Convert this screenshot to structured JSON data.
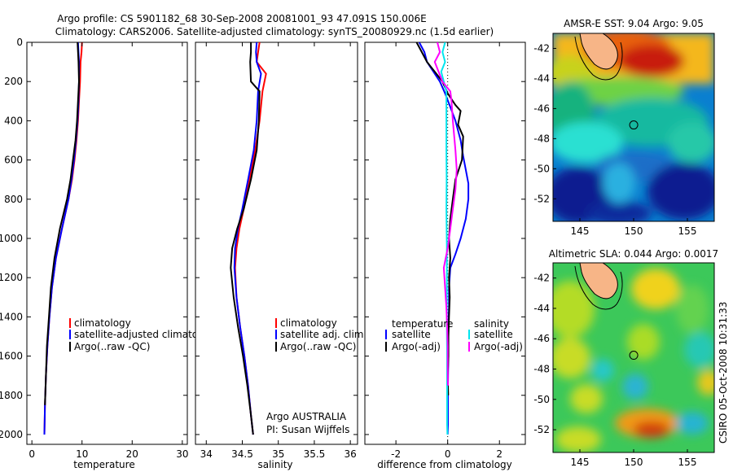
{
  "title_line1": "Argo profile: CS 5901182_68 30-Sep-2008 20081001_93 47.091S 150.006E",
  "title_line2": "Climatology: CARS2006. Satellite-adjusted climatology: synTS_20080929.nc (1.5d earlier)",
  "side_label": "CSIRO 05-Oct-2008 10:31:33",
  "colors": {
    "climatology": "#ff0000",
    "satellite": "#0000ff",
    "argo": "#000000",
    "salinity_satellite": "#00e5ee",
    "salinity_argo": "#ff00ff",
    "land": "#f7b587"
  },
  "chart_data": [
    {
      "type": "line",
      "panel": "temperature",
      "xlabel": "temperature",
      "ylabel": "",
      "xlim": [
        -1,
        31
      ],
      "ylim": [
        0,
        2050
      ],
      "y_inverted": true,
      "xticks": [
        0,
        10,
        20,
        30
      ],
      "yticks": [
        0,
        200,
        400,
        600,
        800,
        1000,
        1200,
        1400,
        1600,
        1800,
        2000
      ],
      "legend": [
        "climatology",
        "satellite-adjusted climatolog",
        "Argo(..raw -QC)"
      ],
      "series": [
        {
          "name": "climatology",
          "color": "climatology",
          "x": [
            10.0,
            9.9,
            9.7,
            9.6,
            9.4,
            9.2,
            8.9,
            8.5,
            8.0,
            7.3,
            6.0,
            4.8,
            4.0,
            3.5,
            3.1,
            2.8,
            2.6,
            2.5
          ],
          "y": [
            0,
            50,
            100,
            200,
            300,
            400,
            500,
            600,
            700,
            800,
            950,
            1100,
            1250,
            1400,
            1550,
            1700,
            1850,
            2000
          ]
        },
        {
          "name": "satellite-adjusted climatology",
          "color": "satellite",
          "x": [
            9.2,
            9.3,
            9.4,
            9.4,
            9.3,
            9.1,
            8.8,
            8.4,
            7.9,
            7.3,
            6.0,
            4.8,
            4.0,
            3.5,
            3.1,
            2.8,
            2.6,
            2.5
          ],
          "y": [
            0,
            50,
            100,
            200,
            300,
            400,
            500,
            600,
            700,
            800,
            950,
            1100,
            1250,
            1400,
            1550,
            1700,
            1850,
            2000
          ]
        },
        {
          "name": "Argo(..raw -QC)",
          "color": "argo",
          "x": [
            9.1,
            9.2,
            9.3,
            9.4,
            9.2,
            9.0,
            8.7,
            8.2,
            7.7,
            7.0,
            5.6,
            4.5,
            3.8,
            3.4,
            3.0,
            2.8,
            2.6
          ],
          "y": [
            0,
            50,
            100,
            200,
            300,
            400,
            500,
            600,
            700,
            800,
            950,
            1100,
            1250,
            1400,
            1550,
            1700,
            1850
          ]
        }
      ]
    },
    {
      "type": "line",
      "panel": "salinity",
      "xlabel": "salinity",
      "xlim": [
        33.85,
        36.1
      ],
      "ylim": [
        0,
        2050
      ],
      "y_inverted": true,
      "xticks": [
        34,
        34.5,
        35,
        35.5,
        36
      ],
      "xtick_labels": [
        "34",
        "34.5",
        "35",
        "35.5",
        "36"
      ],
      "legend": [
        "climatology",
        "satellite adj. clim.",
        "Argo(..raw -QC)"
      ],
      "annotation_line1": "Argo AUSTRALIA",
      "annotation_line2": "PI: Susan Wijffels",
      "series": [
        {
          "name": "climatology",
          "color": "climatology",
          "x": [
            34.74,
            34.72,
            34.7,
            34.83,
            34.78,
            34.74,
            34.68,
            34.6,
            34.52,
            34.46,
            34.42,
            34.4,
            34.42,
            34.47,
            34.53,
            34.58,
            34.62,
            34.65
          ],
          "y": [
            0,
            50,
            100,
            160,
            250,
            400,
            550,
            700,
            850,
            950,
            1050,
            1150,
            1300,
            1450,
            1600,
            1750,
            1900,
            2000
          ]
        },
        {
          "name": "satellite adj. clim.",
          "color": "satellite",
          "x": [
            34.7,
            34.69,
            34.7,
            34.76,
            34.72,
            34.7,
            34.66,
            34.58,
            34.5,
            34.44,
            34.4,
            34.39,
            34.42,
            34.47,
            34.53,
            34.58,
            34.62,
            34.65
          ],
          "y": [
            0,
            50,
            100,
            160,
            250,
            400,
            550,
            700,
            850,
            950,
            1050,
            1150,
            1300,
            1450,
            1600,
            1750,
            1900,
            2000
          ]
        },
        {
          "name": "Argo(..raw -QC)",
          "color": "argo",
          "x": [
            34.62,
            34.62,
            34.61,
            34.62,
            34.74,
            34.73,
            34.7,
            34.62,
            34.52,
            34.43,
            34.36,
            34.34,
            34.38,
            34.44,
            34.51,
            34.57,
            34.62,
            34.65
          ],
          "y": [
            0,
            50,
            100,
            200,
            250,
            400,
            550,
            700,
            850,
            950,
            1050,
            1150,
            1300,
            1450,
            1600,
            1750,
            1900,
            2000
          ]
        }
      ]
    },
    {
      "type": "line",
      "panel": "difference",
      "xlabel": "difference from climatology",
      "xlim": [
        -3.2,
        3.0
      ],
      "ylim": [
        0,
        2050
      ],
      "y_inverted": true,
      "xticks": [
        -2,
        0,
        2
      ],
      "legend_temperature_header": "temperature",
      "legend_salinity_header": "salinity",
      "legend_temperature": [
        "satellite",
        "Argo(-adj)"
      ],
      "legend_salinity": [
        "satellite",
        "Argo(-adj)"
      ],
      "series": [
        {
          "name": "temperature satellite",
          "color": "satellite",
          "x": [
            -1.1,
            -0.9,
            -0.8,
            -0.3,
            -0.1,
            0.1,
            0.3,
            0.5,
            0.6,
            0.7,
            0.8,
            0.8,
            0.7,
            0.5,
            0.3,
            0.1,
            0.05,
            0.05,
            0.03,
            0.02,
            0.02,
            0.01,
            0.01,
            0.01,
            0.0
          ],
          "y": [
            0,
            50,
            100,
            200,
            260,
            330,
            400,
            500,
            580,
            650,
            720,
            800,
            900,
            1000,
            1080,
            1150,
            1250,
            1350,
            1450,
            1550,
            1650,
            1750,
            1850,
            1950,
            2000
          ]
        },
        {
          "name": "temperature Argo(-adj)",
          "color": "argo",
          "x": [
            -1.2,
            -1.0,
            -0.8,
            -0.5,
            -0.2,
            0.0,
            0.3,
            0.5,
            0.4,
            0.6,
            0.55,
            0.3,
            0.2,
            0.1,
            0.05,
            0.1,
            0.05,
            0.08,
            0.05,
            0.03,
            0.03,
            0.0,
            0.02
          ],
          "y": [
            0,
            50,
            100,
            150,
            200,
            260,
            320,
            350,
            420,
            480,
            600,
            700,
            800,
            900,
            1000,
            1100,
            1200,
            1300,
            1400,
            1500,
            1600,
            1700,
            1800
          ]
        },
        {
          "name": "salinity satellite",
          "color": "salinity_satellite",
          "x": [
            -0.1,
            -0.2,
            -0.1,
            -0.25,
            -0.05,
            -0.05,
            -0.05,
            -0.04,
            -0.05,
            -0.04,
            -0.03,
            -0.03,
            -0.03,
            -0.03,
            -0.02,
            -0.02,
            -0.02,
            -0.02,
            -0.02,
            -0.01
          ],
          "y": [
            0,
            50,
            100,
            150,
            250,
            400,
            550,
            700,
            850,
            950,
            1050,
            1150,
            1300,
            1450,
            1600,
            1750,
            1850,
            1900,
            1950,
            2000
          ]
        },
        {
          "name": "salinity Argo(-adj)",
          "color": "salinity_argo",
          "x": [
            -0.4,
            -0.3,
            -0.5,
            -0.2,
            0.1,
            0.15,
            0.2,
            0.3,
            0.35,
            0.3,
            0.2,
            0.1,
            0.0,
            -0.15,
            -0.1,
            -0.05,
            -0.02,
            0.0,
            0.0,
            0.01
          ],
          "y": [
            0,
            50,
            100,
            200,
            250,
            300,
            400,
            550,
            650,
            750,
            850,
            950,
            1050,
            1150,
            1250,
            1350,
            1450,
            1550,
            1650,
            1750
          ]
        }
      ]
    },
    {
      "type": "heatmap",
      "panel": "sst_map",
      "title": "AMSR-E SST: 9.04 Argo: 9.05",
      "xlim": [
        142.5,
        157.5
      ],
      "ylim": [
        -53.5,
        -41
      ],
      "xticks": [
        145,
        150,
        155
      ],
      "yticks": [
        -42,
        -44,
        -46,
        -48,
        -50,
        -52
      ],
      "ytick_labels": [
        "-42",
        "-44",
        "-46",
        "-48",
        "-50",
        "-52"
      ],
      "float_position": {
        "lon": 150.006,
        "lat": -47.091
      },
      "note": "smooth temperature field: warm (yellow/orange/red) north, cool (cyan/blue/dark blue) south"
    },
    {
      "type": "heatmap",
      "panel": "sla_map",
      "title": "Altimetric SLA: 0.044 Argo: 0.0017",
      "xlim": [
        142.5,
        157.5
      ],
      "ylim": [
        -53.5,
        -41
      ],
      "xticks": [
        145,
        150,
        155
      ],
      "yticks": [
        -42,
        -44,
        -46,
        -48,
        -50,
        -52
      ],
      "ytick_labels": [
        "-42",
        "-44",
        "-46",
        "-48",
        "-50",
        "-52"
      ],
      "float_position": {
        "lon": 150.006,
        "lat": -47.091
      },
      "note": "mostly green field with yellow/orange and cyan eddies"
    }
  ]
}
